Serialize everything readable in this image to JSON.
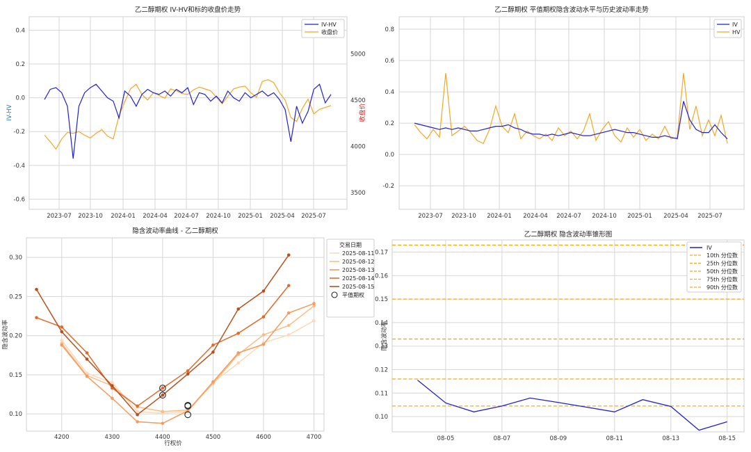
{
  "chart_data": [
    {
      "type": "line",
      "title": "乙二醇期权 IV-HV和标的收盘价走势",
      "xlabel": "",
      "ylabel": "IV-HV",
      "y2label": "收盘价",
      "xticks": [
        "2023-07",
        "2023-10",
        "2024-01",
        "2024-04",
        "2024-07",
        "2024-10",
        "2025-01",
        "2025-04",
        "2025-07"
      ],
      "yticks": [
        "-0.6",
        "-0.4",
        "-0.2",
        "0.0",
        "0.2",
        "0.4"
      ],
      "y2ticks": [
        "3500",
        "4000",
        "4500",
        "5000"
      ],
      "ylim": [
        -0.66,
        0.48
      ],
      "y2lim": [
        3320,
        5400
      ],
      "legend_position": "top-right",
      "colors": {
        "iv_hv": "#1f1fd6",
        "close": "#f5a623",
        "left_axis": "#1f77b4",
        "right_axis": "#d62728"
      },
      "series": [
        {
          "name": "IV-HV",
          "t": [
            0,
            0.02,
            0.04,
            0.06,
            0.08,
            0.1,
            0.12,
            0.14,
            0.16,
            0.18,
            0.2,
            0.22,
            0.24,
            0.26,
            0.28,
            0.3,
            0.32,
            0.34,
            0.36,
            0.38,
            0.4,
            0.42,
            0.44,
            0.46,
            0.48,
            0.5,
            0.52,
            0.54,
            0.56,
            0.58,
            0.6,
            0.62,
            0.64,
            0.66,
            0.68,
            0.7,
            0.72,
            0.74,
            0.76,
            0.78,
            0.8,
            0.82,
            0.84,
            0.86,
            0.88,
            0.9,
            0.92,
            0.94,
            0.96,
            0.98,
            1.0
          ],
          "values": [
            -0.01,
            0.05,
            0.06,
            0.03,
            -0.05,
            -0.36,
            -0.05,
            0.03,
            0.06,
            0.08,
            0.04,
            0.0,
            -0.02,
            -0.12,
            0.04,
            0.01,
            -0.05,
            0.02,
            0.05,
            0.03,
            0.02,
            0.04,
            0.01,
            0.05,
            0.03,
            0.06,
            -0.04,
            0.03,
            0.02,
            -0.02,
            0.01,
            -0.03,
            0.04,
            0.0,
            -0.02,
            0.03,
            0.0,
            0.02,
            0.04,
            0.01,
            0.03,
            -0.01,
            -0.07,
            -0.26,
            -0.05,
            -0.15,
            -0.08,
            0.05,
            0.08,
            -0.03,
            0.02
          ]
        },
        {
          "name": "收盘价",
          "t": [
            0,
            0.02,
            0.04,
            0.06,
            0.08,
            0.1,
            0.12,
            0.14,
            0.16,
            0.18,
            0.2,
            0.22,
            0.24,
            0.26,
            0.28,
            0.3,
            0.32,
            0.34,
            0.36,
            0.38,
            0.4,
            0.42,
            0.44,
            0.46,
            0.48,
            0.5,
            0.52,
            0.54,
            0.56,
            0.58,
            0.6,
            0.62,
            0.64,
            0.66,
            0.68,
            0.7,
            0.72,
            0.74,
            0.76,
            0.78,
            0.8,
            0.82,
            0.84,
            0.86,
            0.88,
            0.9,
            0.92,
            0.94,
            0.96,
            0.98,
            1.0
          ],
          "values": [
            4120,
            4050,
            3970,
            4080,
            4150,
            4140,
            4160,
            4120,
            4090,
            4140,
            4180,
            4110,
            4080,
            4330,
            4480,
            4620,
            4670,
            4560,
            4500,
            4580,
            4550,
            4520,
            4620,
            4600,
            4570,
            4560,
            4610,
            4640,
            4620,
            4600,
            4530,
            4460,
            4540,
            4620,
            4640,
            4650,
            4580,
            4530,
            4700,
            4720,
            4690,
            4580,
            4500,
            4310,
            4270,
            4410,
            4510,
            4350,
            4400,
            4420,
            4440
          ]
        }
      ]
    },
    {
      "type": "line",
      "title": "乙二醇期权 平值期权隐含波动水平与历史波动率走势",
      "xlabel": "",
      "ylabel": "",
      "xticks": [
        "2023-07",
        "2023-10",
        "2024-01",
        "2024-04",
        "2024-07",
        "2024-10",
        "2025-01",
        "2025-04",
        "2025-07"
      ],
      "yticks": [
        "-0.2",
        "0.0",
        "0.2",
        "0.4",
        "0.6",
        "0.8"
      ],
      "ylim": [
        -0.35,
        0.88
      ],
      "legend_position": "top-right",
      "series": [
        {
          "name": "IV",
          "color": "#1f1fd6",
          "t": [
            0,
            0.02,
            0.04,
            0.06,
            0.08,
            0.1,
            0.12,
            0.14,
            0.16,
            0.18,
            0.2,
            0.22,
            0.24,
            0.26,
            0.28,
            0.3,
            0.32,
            0.34,
            0.36,
            0.38,
            0.4,
            0.42,
            0.44,
            0.46,
            0.48,
            0.5,
            0.52,
            0.54,
            0.56,
            0.58,
            0.6,
            0.62,
            0.64,
            0.66,
            0.68,
            0.7,
            0.72,
            0.74,
            0.76,
            0.78,
            0.8,
            0.82,
            0.84,
            0.86,
            0.88,
            0.9,
            0.92,
            0.94,
            0.96,
            0.98,
            1.0
          ],
          "values": [
            0.2,
            0.19,
            0.18,
            0.17,
            0.16,
            0.17,
            0.16,
            0.17,
            0.16,
            0.15,
            0.15,
            0.16,
            0.17,
            0.18,
            0.18,
            0.19,
            0.17,
            0.16,
            0.14,
            0.13,
            0.13,
            0.12,
            0.13,
            0.12,
            0.13,
            0.14,
            0.13,
            0.12,
            0.12,
            0.13,
            0.14,
            0.15,
            0.16,
            0.15,
            0.14,
            0.14,
            0.13,
            0.12,
            0.11,
            0.11,
            0.12,
            0.11,
            0.1,
            0.34,
            0.22,
            0.16,
            0.14,
            0.14,
            0.19,
            0.14,
            0.1
          ]
        },
        {
          "name": "HV",
          "color": "#f5a623",
          "t": [
            0,
            0.02,
            0.04,
            0.06,
            0.08,
            0.1,
            0.12,
            0.14,
            0.16,
            0.18,
            0.2,
            0.22,
            0.24,
            0.26,
            0.28,
            0.3,
            0.32,
            0.34,
            0.36,
            0.38,
            0.4,
            0.42,
            0.44,
            0.46,
            0.48,
            0.5,
            0.52,
            0.54,
            0.56,
            0.58,
            0.6,
            0.62,
            0.64,
            0.66,
            0.68,
            0.7,
            0.72,
            0.74,
            0.76,
            0.78,
            0.8,
            0.82,
            0.84,
            0.86,
            0.88,
            0.9,
            0.92,
            0.94,
            0.96,
            0.98,
            1.0
          ],
          "values": [
            0.19,
            0.14,
            0.1,
            0.16,
            0.11,
            0.52,
            0.12,
            0.15,
            0.18,
            0.14,
            0.09,
            0.07,
            0.16,
            0.31,
            0.18,
            0.14,
            0.26,
            0.1,
            0.15,
            0.12,
            0.1,
            0.13,
            0.09,
            0.17,
            0.12,
            0.15,
            0.1,
            0.15,
            0.26,
            0.09,
            0.16,
            0.21,
            0.12,
            0.08,
            0.17,
            0.11,
            0.16,
            0.09,
            0.13,
            0.1,
            0.18,
            0.1,
            0.11,
            0.52,
            0.16,
            0.31,
            0.12,
            0.22,
            0.12,
            0.25,
            0.07
          ]
        }
      ]
    },
    {
      "type": "line",
      "title": "隐含波动率曲线 - 乙二醇期权",
      "xlabel": "行权价",
      "ylabel": "隐含波动率",
      "x": [
        4150,
        4200,
        4250,
        4300,
        4350,
        4400,
        4450,
        4500,
        4550,
        4600,
        4650,
        4700
      ],
      "xticks": [
        "4200",
        "4300",
        "4400",
        "4500",
        "4600",
        "4700"
      ],
      "yticks": [
        "0.10",
        "0.15",
        "0.20",
        "0.25",
        "0.30"
      ],
      "xlim": [
        4130,
        4720
      ],
      "ylim": [
        0.078,
        0.325
      ],
      "legend_title": "交易日期",
      "legend_position": "top-right",
      "series": [
        {
          "name": "2025-08-11",
          "color": "#fdd9b5",
          "values": [
            null,
            0.194,
            0.152,
            0.14,
            0.103,
            0.101,
            0.103,
            0.14,
            0.165,
            0.191,
            0.201,
            0.219
          ]
        },
        {
          "name": "2025-08-12",
          "color": "#fdbb84",
          "values": [
            null,
            0.19,
            0.149,
            0.136,
            0.109,
            0.103,
            0.105,
            0.139,
            0.176,
            0.201,
            0.213,
            0.238
          ]
        },
        {
          "name": "2025-08-13",
          "color": "#f79a5c",
          "values": [
            null,
            0.188,
            0.148,
            0.12,
            0.09,
            0.088,
            0.104,
            0.141,
            0.178,
            0.189,
            0.229,
            0.241
          ]
        },
        {
          "name": "2025-08-14",
          "color": "#e26b2b",
          "values": [
            0.223,
            0.211,
            0.178,
            0.133,
            0.11,
            0.133,
            0.155,
            0.188,
            0.203,
            0.224,
            0.264,
            null
          ]
        },
        {
          "name": "2025-08-15",
          "color": "#b8501c",
          "values": [
            0.259,
            0.205,
            0.17,
            0.136,
            0.099,
            0.124,
            0.151,
            0.179,
            0.234,
            0.257,
            0.303,
            null
          ]
        }
      ],
      "atm_markers": {
        "name": "平值期权",
        "points": [
          [
            4400,
            0.133
          ],
          [
            4400,
            0.124
          ],
          [
            4450,
            0.111
          ],
          [
            4450,
            0.11
          ],
          [
            4450,
            0.099
          ]
        ]
      }
    },
    {
      "type": "line",
      "title": "乙二醇期权 隐含波动率锥形图",
      "xlabel": "",
      "ylabel": "隐含波动率",
      "xticks": [
        "08-05",
        "08-07",
        "08-09",
        "08-11",
        "08-13",
        "08-15"
      ],
      "yticks": [
        "0.10",
        "0.11",
        "0.12",
        "0.13",
        "0.14",
        "0.15",
        "0.16",
        "0.17"
      ],
      "xlim": [
        3.1,
        15.6
      ],
      "ylim": [
        0.0935,
        0.1752
      ],
      "legend_position": "top-right",
      "series": [
        {
          "name": "IV",
          "color": "#1f1fd6",
          "x": [
            4,
            5,
            6,
            7,
            8,
            9,
            10,
            11,
            12,
            13,
            14,
            15
          ],
          "values": [
            0.1155,
            0.1058,
            0.102,
            0.1045,
            0.1079,
            0.106,
            0.104,
            0.102,
            0.1072,
            0.1043,
            0.0942,
            0.0978
          ]
        }
      ],
      "percentiles": [
        {
          "name": "10th 分位数",
          "value": 0.1045
        },
        {
          "name": "25th 分位数",
          "value": 0.116
        },
        {
          "name": "50th 分位数",
          "value": 0.133
        },
        {
          "name": "75th 分位数",
          "value": 0.15
        },
        {
          "name": "90th 分位数",
          "value": 0.173
        }
      ],
      "percentile_color": "#f5a623"
    }
  ]
}
